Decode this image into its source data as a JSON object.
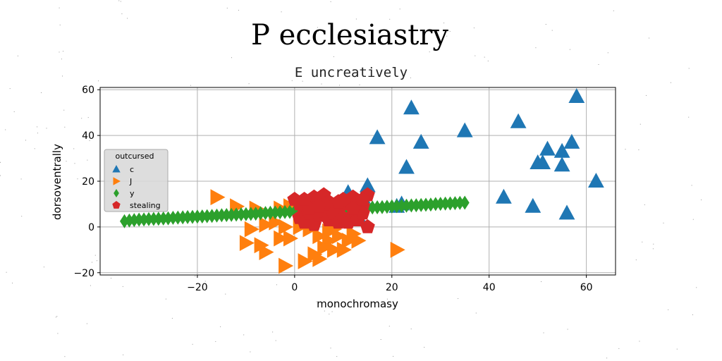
{
  "chart_data": {
    "type": "scatter",
    "title": "P ecclesiastry",
    "subtitle": "E uncreatively",
    "xlabel": "monochromasy",
    "ylabel": "dorsoventrally",
    "xlim": [
      -40,
      66
    ],
    "ylim": [
      -21,
      61
    ],
    "xticks": [
      -20,
      0,
      20,
      40,
      60
    ],
    "yticks": [
      -20,
      0,
      20,
      40,
      60
    ],
    "xtick_labels": [
      "−20",
      "0",
      "20",
      "40",
      "60"
    ],
    "ytick_labels": [
      "−20",
      "0",
      "20",
      "40",
      "60"
    ],
    "grid": true,
    "legend": {
      "title": "outcursed",
      "placement": "center-left"
    },
    "series": [
      {
        "name": "c",
        "marker": "triangle-up",
        "color": "#1f77b4",
        "points": [
          [
            24,
            52
          ],
          [
            58,
            57
          ],
          [
            35,
            42
          ],
          [
            46,
            46
          ],
          [
            17,
            39
          ],
          [
            26,
            37
          ],
          [
            52,
            34
          ],
          [
            57,
            37
          ],
          [
            55,
            33
          ],
          [
            50,
            28
          ],
          [
            51,
            28
          ],
          [
            55,
            27
          ],
          [
            23,
            26
          ],
          [
            62,
            20
          ],
          [
            43,
            13
          ],
          [
            49,
            9
          ],
          [
            56,
            6
          ],
          [
            11,
            15
          ],
          [
            15,
            18
          ],
          [
            14,
            13
          ],
          [
            12,
            10
          ],
          [
            21,
            9
          ],
          [
            22,
            10
          ],
          [
            13,
            5
          ]
        ]
      },
      {
        "name": "J",
        "marker": "triangle-right",
        "color": "#ff7f0e",
        "points": [
          [
            -16,
            13
          ],
          [
            -12,
            9
          ],
          [
            -8,
            8
          ],
          [
            -3,
            8
          ],
          [
            -1,
            9
          ],
          [
            5,
            8
          ],
          [
            -9,
            -1
          ],
          [
            -6,
            1
          ],
          [
            -4,
            2
          ],
          [
            -2,
            0
          ],
          [
            1,
            0
          ],
          [
            3,
            1
          ],
          [
            -10,
            -7
          ],
          [
            -7,
            -8
          ],
          [
            -6,
            -11
          ],
          [
            -3,
            -5
          ],
          [
            -1,
            -5
          ],
          [
            3,
            -1
          ],
          [
            5,
            -4
          ],
          [
            7,
            -2
          ],
          [
            9,
            -4
          ],
          [
            11,
            -6
          ],
          [
            12,
            -3
          ],
          [
            7,
            -6
          ],
          [
            8,
            -10
          ],
          [
            4,
            -12
          ],
          [
            2,
            -15
          ],
          [
            -2,
            -17
          ],
          [
            5,
            -14
          ],
          [
            10,
            -10
          ],
          [
            6,
            -9
          ],
          [
            8,
            -1
          ],
          [
            21,
            -10
          ],
          [
            13,
            -6
          ]
        ]
      },
      {
        "name": "y",
        "marker": "diamond",
        "color": "#2ca02c",
        "points": [
          [
            -35,
            2.5
          ],
          [
            -34,
            2.8
          ],
          [
            -33,
            3.0
          ],
          [
            -32,
            3.2
          ],
          [
            -31,
            3.3
          ],
          [
            -30,
            3.4
          ],
          [
            -29,
            3.5
          ],
          [
            -28,
            3.6
          ],
          [
            -27,
            3.7
          ],
          [
            -26,
            3.8
          ],
          [
            -25,
            4.0
          ],
          [
            -24,
            4.1
          ],
          [
            -23,
            4.2
          ],
          [
            -22,
            4.3
          ],
          [
            -21,
            4.4
          ],
          [
            -20,
            4.5
          ],
          [
            -19,
            4.6
          ],
          [
            -18,
            4.7
          ],
          [
            -17,
            4.8
          ],
          [
            -16,
            5.0
          ],
          [
            -15,
            5.1
          ],
          [
            -14,
            5.2
          ],
          [
            -13,
            5.3
          ],
          [
            -12,
            5.4
          ],
          [
            -11,
            5.5
          ],
          [
            -10,
            5.6
          ],
          [
            -9,
            5.7
          ],
          [
            -8,
            5.8
          ],
          [
            -7,
            6.0
          ],
          [
            -6,
            6.1
          ],
          [
            -5,
            6.2
          ],
          [
            -4,
            6.3
          ],
          [
            -3,
            6.4
          ],
          [
            -2,
            6.5
          ],
          [
            -1,
            6.6
          ],
          [
            0,
            6.7
          ],
          [
            1,
            6.8
          ],
          [
            2,
            7.0
          ],
          [
            3,
            7.1
          ],
          [
            4,
            7.2
          ],
          [
            5,
            7.3
          ],
          [
            6,
            7.4
          ],
          [
            7,
            7.5
          ],
          [
            8,
            7.6
          ],
          [
            9,
            7.7
          ],
          [
            10,
            7.8
          ],
          [
            11,
            8.0
          ],
          [
            12,
            8.1
          ],
          [
            13,
            8.2
          ],
          [
            14,
            8.3
          ],
          [
            15,
            8.4
          ],
          [
            16,
            8.5
          ],
          [
            17,
            8.6
          ],
          [
            18,
            8.7
          ],
          [
            19,
            8.8
          ],
          [
            20,
            9.0
          ],
          [
            21,
            9.1
          ],
          [
            22,
            9.2
          ],
          [
            23,
            9.3
          ],
          [
            24,
            9.4
          ],
          [
            25,
            9.5
          ],
          [
            26,
            9.6
          ],
          [
            27,
            9.7
          ],
          [
            28,
            9.8
          ],
          [
            29,
            10.0
          ],
          [
            30,
            10.1
          ],
          [
            31,
            10.2
          ],
          [
            32,
            10.3
          ],
          [
            33,
            10.4
          ],
          [
            34,
            10.5
          ],
          [
            35,
            10.6
          ]
        ]
      },
      {
        "name": "stealing",
        "marker": "pentagon",
        "color": "#d62728",
        "points": [
          [
            0,
            12
          ],
          [
            1,
            10
          ],
          [
            2,
            7
          ],
          [
            3,
            11
          ],
          [
            4,
            13
          ],
          [
            5,
            12
          ],
          [
            6,
            14
          ],
          [
            7,
            11
          ],
          [
            8,
            9
          ],
          [
            9,
            7
          ],
          [
            10,
            12
          ],
          [
            11,
            10
          ],
          [
            12,
            13
          ],
          [
            13,
            11
          ],
          [
            14,
            9
          ],
          [
            15,
            14
          ],
          [
            1,
            4
          ],
          [
            2,
            2
          ],
          [
            3,
            6
          ],
          [
            4,
            1
          ],
          [
            5,
            5
          ],
          [
            6,
            7
          ],
          [
            7,
            3
          ],
          [
            8,
            6
          ],
          [
            9,
            2
          ],
          [
            10,
            4
          ],
          [
            11,
            2
          ],
          [
            12,
            5
          ],
          [
            13,
            3
          ],
          [
            14,
            6
          ],
          [
            15,
            0
          ],
          [
            3,
            8
          ],
          [
            6,
            10
          ],
          [
            9,
            11
          ],
          [
            12,
            8
          ],
          [
            2,
            12
          ],
          [
            14,
            12
          ],
          [
            5,
            9
          ]
        ]
      }
    ]
  }
}
